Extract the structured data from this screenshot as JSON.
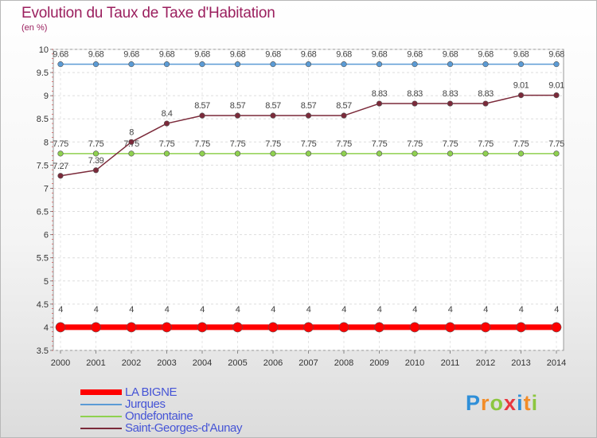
{
  "header": {
    "title": "Evolution du Taux de Taxe d'Habitation",
    "subtitle": "(en %)"
  },
  "chart_data": {
    "type": "line",
    "title": "Evolution du Taux de Taxe d'Habitation",
    "ylabel": "(en %)",
    "xlabel": "",
    "ylim": [
      3.5,
      10
    ],
    "y_ticks": [
      "3.5",
      "4",
      "4.5",
      "5",
      "5.5",
      "6",
      "6.5",
      "7",
      "7.5",
      "8",
      "8.5",
      "9",
      "9.5",
      "10"
    ],
    "categories": [
      "2000",
      "2001",
      "2002",
      "2003",
      "2004",
      "2005",
      "2006",
      "2007",
      "2008",
      "2009",
      "2010",
      "2011",
      "2012",
      "2013",
      "2014"
    ],
    "grid": true,
    "legend_position": "bottom-left",
    "series": [
      {
        "name": "LA BIGNE",
        "color": "#ff0000",
        "values": [
          4,
          4,
          4,
          4,
          4,
          4,
          4,
          4,
          4,
          4,
          4,
          4,
          4,
          4,
          4
        ],
        "labels": [
          "4",
          "4",
          "4",
          "4",
          "4",
          "4",
          "4",
          "4",
          "4",
          "4",
          "4",
          "4",
          "4",
          "4",
          "4"
        ]
      },
      {
        "name": "Jurques",
        "color": "#5b9bd5",
        "values": [
          9.68,
          9.68,
          9.68,
          9.68,
          9.68,
          9.68,
          9.68,
          9.68,
          9.68,
          9.68,
          9.68,
          9.68,
          9.68,
          9.68,
          9.68
        ],
        "labels": [
          "9.68",
          "9.68",
          "9.68",
          "9.68",
          "9.68",
          "9.68",
          "9.68",
          "9.68",
          "9.68",
          "9.68",
          "9.68",
          "9.68",
          "9.68",
          "9.68",
          "9.68"
        ]
      },
      {
        "name": "Ondefontaine",
        "color": "#8fd14f",
        "values": [
          7.75,
          7.75,
          7.75,
          7.75,
          7.75,
          7.75,
          7.75,
          7.75,
          7.75,
          7.75,
          7.75,
          7.75,
          7.75,
          7.75,
          7.75
        ],
        "labels": [
          "7.75",
          "7.75",
          "7.75",
          "7.75",
          "7.75",
          "7.75",
          "7.75",
          "7.75",
          "7.75",
          "7.75",
          "7.75",
          "7.75",
          "7.75",
          "7.75",
          "7.75"
        ]
      },
      {
        "name": "Saint-Georges-d'Aunay",
        "color": "#7b2a3a",
        "values": [
          7.27,
          7.39,
          8,
          8.4,
          8.57,
          8.57,
          8.57,
          8.57,
          8.57,
          8.83,
          8.83,
          8.83,
          8.83,
          9.01,
          9.01
        ],
        "labels": [
          "7.27",
          "7.39",
          "8",
          "8.4",
          "8.57",
          "8.57",
          "8.57",
          "8.57",
          "8.57",
          "8.83",
          "8.83",
          "8.83",
          "8.83",
          "9.01",
          "9.01"
        ]
      }
    ]
  },
  "branding": {
    "logo_letters": [
      {
        "char": "P",
        "color": "#2f8fd8"
      },
      {
        "char": "r",
        "color": "#f28c28"
      },
      {
        "char": "o",
        "color": "#8cc63f"
      },
      {
        "char": "x",
        "color": "#e8373f"
      },
      {
        "char": "i",
        "color": "#2f8fd8"
      },
      {
        "char": "t",
        "color": "#f28c28"
      },
      {
        "char": "i",
        "color": "#8cc63f"
      }
    ]
  }
}
